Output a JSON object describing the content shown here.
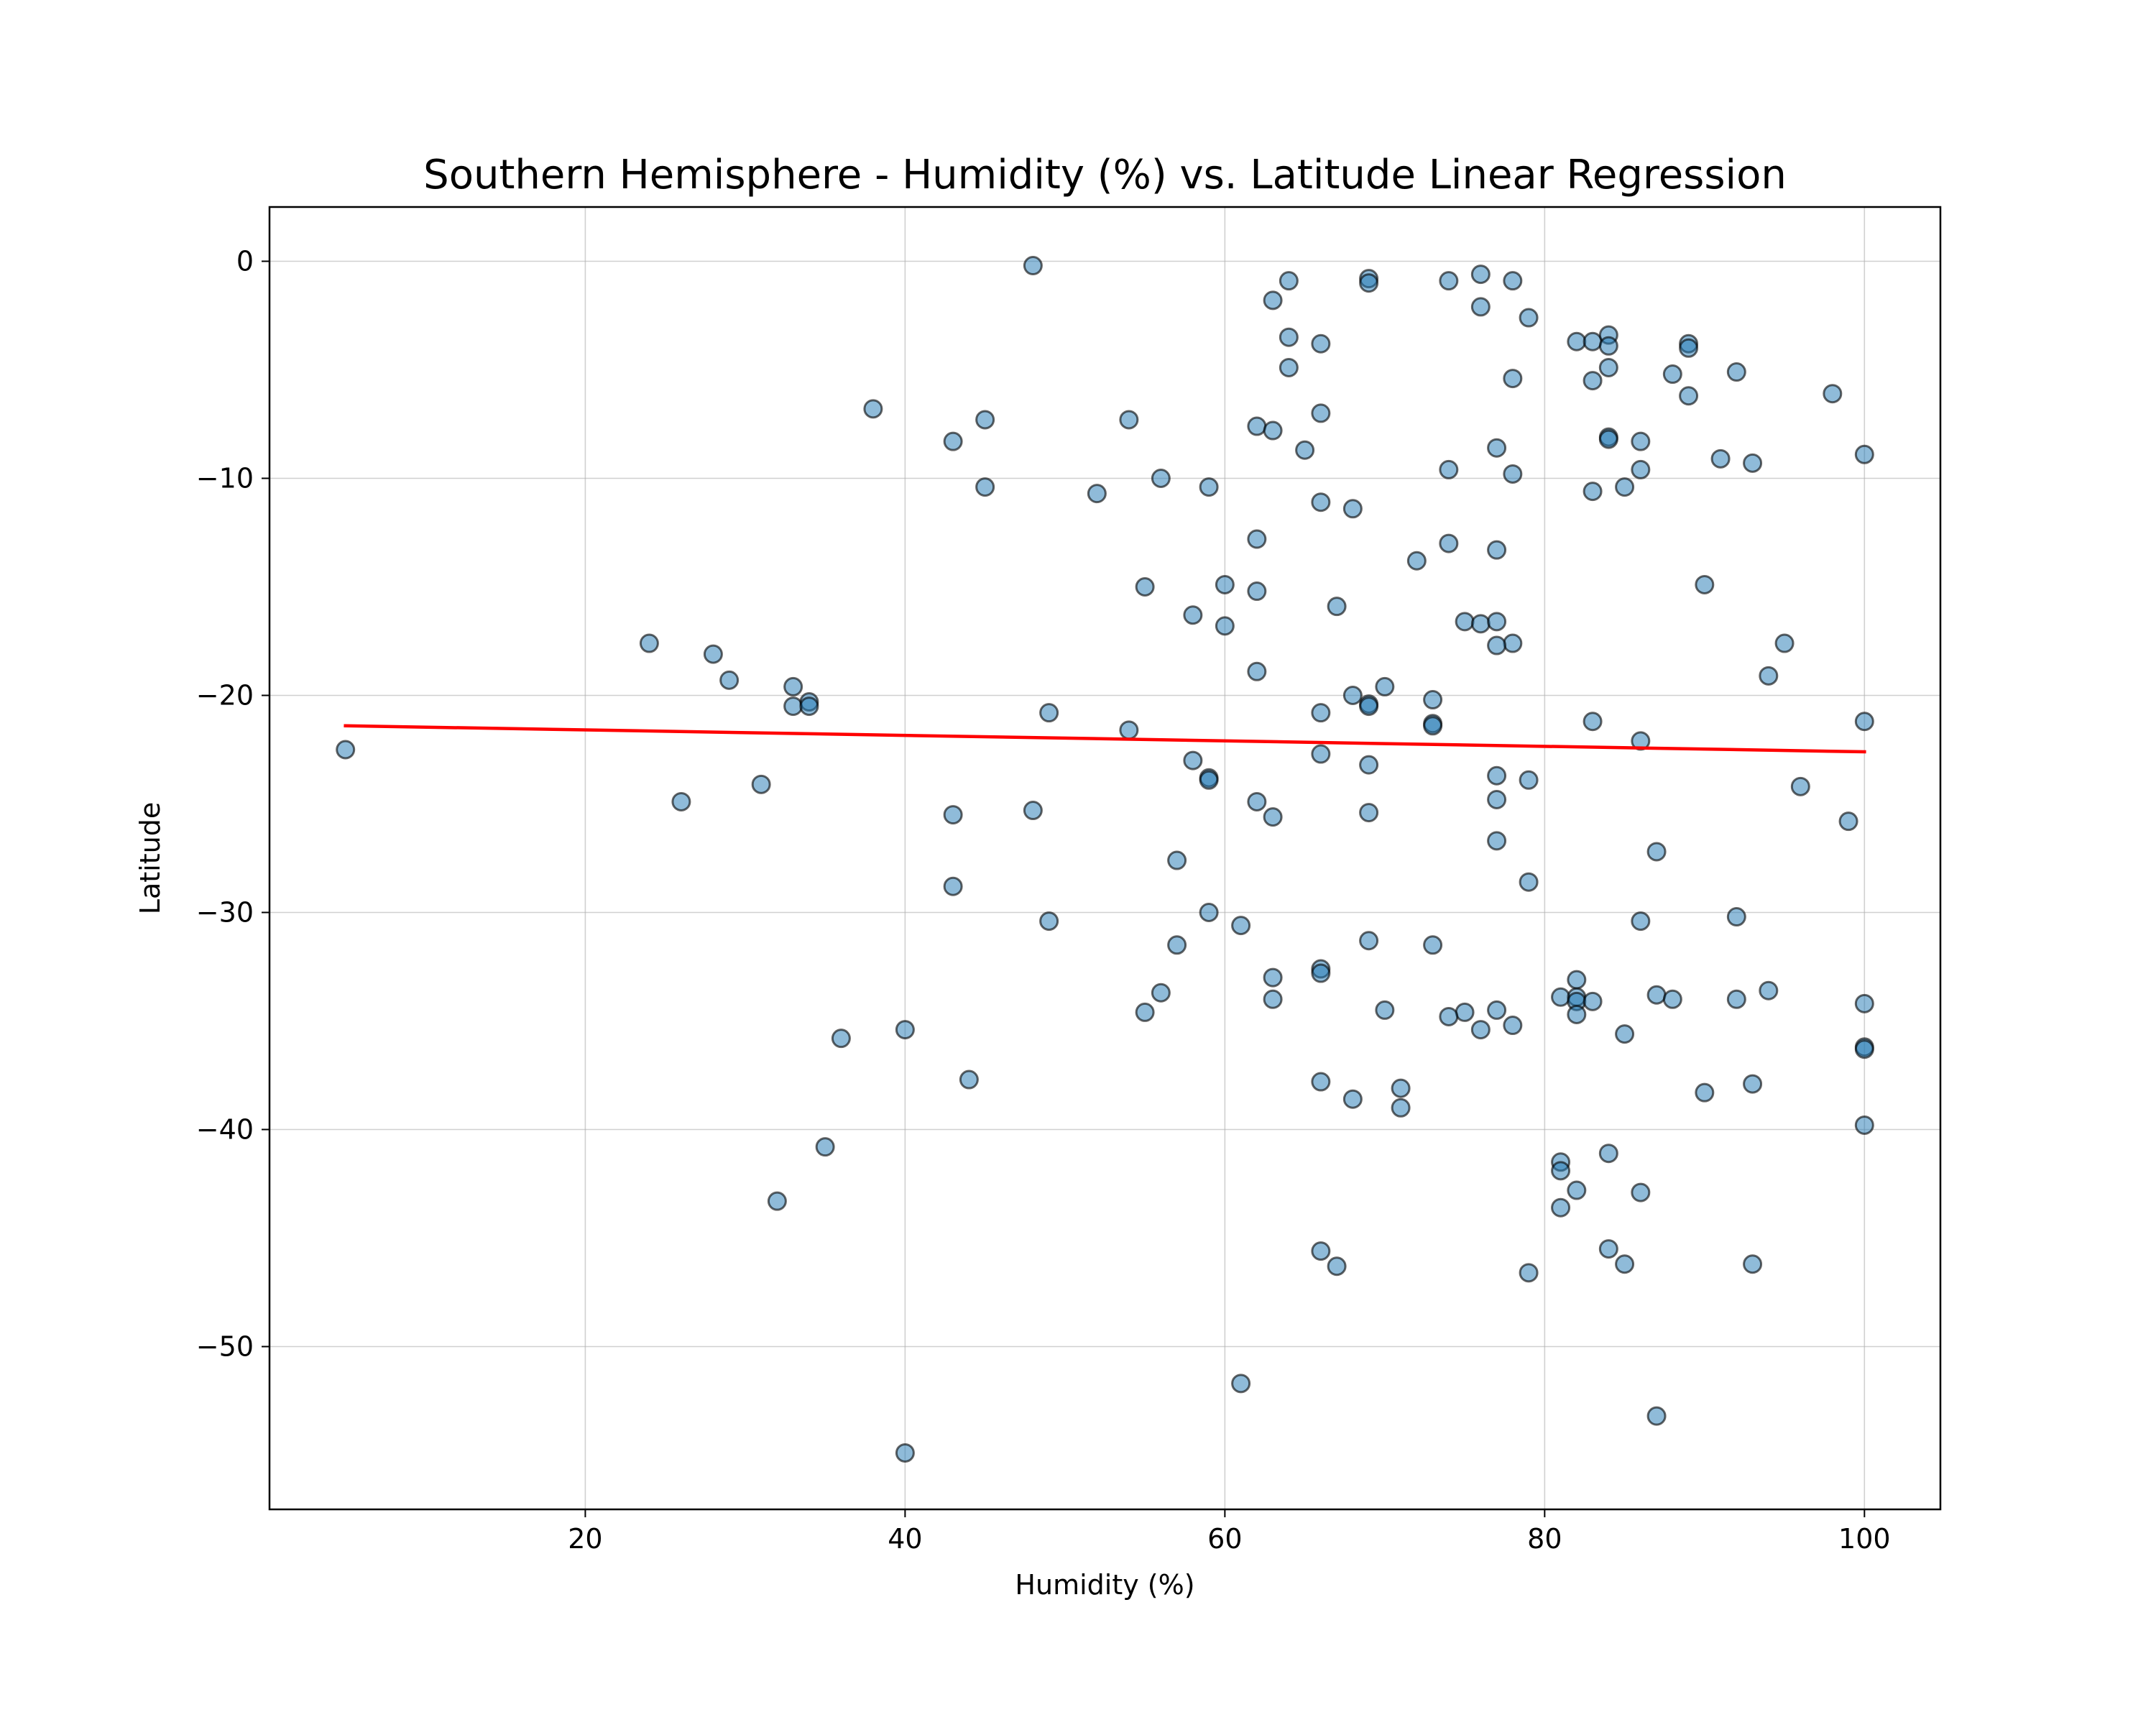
{
  "chart_data": {
    "type": "scatter",
    "title": "Southern Hemisphere - Humidity (%) vs. Latitude Linear Regression",
    "xlabel": "Humidity (%)",
    "ylabel": "Latitude",
    "xlim": [
      0.25,
      104.75
    ],
    "ylim": [
      -57.5,
      2.5
    ],
    "xticks": [
      20,
      40,
      60,
      80,
      100
    ],
    "yticks": [
      0,
      -10,
      -20,
      -30,
      -40,
      -50
    ],
    "xtick_labels": [
      "20",
      "40",
      "60",
      "80",
      "100"
    ],
    "ytick_labels": [
      "0",
      "−10",
      "−20",
      "−30",
      "−40",
      "−50"
    ],
    "grid": true,
    "legend": "none",
    "point_color": "#1f77b4",
    "point_edge_color": "#000000",
    "point_alpha": 0.5,
    "line_color": "#ff0000",
    "regression_line": {
      "x": [
        5,
        100
      ],
      "y": [
        -21.4,
        -22.6
      ]
    },
    "series": [
      {
        "points": [
          [
            48,
            -0.2
          ],
          [
            69,
            -0.8
          ],
          [
            69,
            -1.0
          ],
          [
            76,
            -0.6
          ],
          [
            74,
            -0.9
          ],
          [
            78,
            -0.9
          ],
          [
            64,
            -0.9
          ],
          [
            63,
            -1.8
          ],
          [
            76,
            -2.1
          ],
          [
            79,
            -2.6
          ],
          [
            64,
            -3.5
          ],
          [
            66,
            -3.8
          ],
          [
            82,
            -3.7
          ],
          [
            83,
            -3.7
          ],
          [
            84,
            -3.4
          ],
          [
            84,
            -3.9
          ],
          [
            89,
            -3.8
          ],
          [
            89,
            -4.0
          ],
          [
            64,
            -4.9
          ],
          [
            84,
            -4.9
          ],
          [
            78,
            -5.4
          ],
          [
            83,
            -5.5
          ],
          [
            88,
            -5.2
          ],
          [
            92,
            -5.1
          ],
          [
            89,
            -6.2
          ],
          [
            98,
            -6.1
          ],
          [
            38,
            -6.8
          ],
          [
            45,
            -7.3
          ],
          [
            54,
            -7.3
          ],
          [
            66,
            -7.0
          ],
          [
            62,
            -7.6
          ],
          [
            63,
            -7.8
          ],
          [
            43,
            -8.3
          ],
          [
            65,
            -8.7
          ],
          [
            77,
            -8.6
          ],
          [
            84,
            -8.1
          ],
          [
            84,
            -8.2
          ],
          [
            86,
            -8.3
          ],
          [
            100,
            -8.9
          ],
          [
            91,
            -9.1
          ],
          [
            93,
            -9.3
          ],
          [
            74,
            -9.6
          ],
          [
            78,
            -9.8
          ],
          [
            86,
            -9.6
          ],
          [
            56,
            -10.0
          ],
          [
            59,
            -10.4
          ],
          [
            45,
            -10.4
          ],
          [
            52,
            -10.7
          ],
          [
            83,
            -10.6
          ],
          [
            85,
            -10.4
          ],
          [
            66,
            -11.1
          ],
          [
            68,
            -11.4
          ],
          [
            62,
            -12.8
          ],
          [
            74,
            -13.0
          ],
          [
            77,
            -13.3
          ],
          [
            72,
            -13.8
          ],
          [
            55,
            -15.0
          ],
          [
            60,
            -14.9
          ],
          [
            62,
            -15.2
          ],
          [
            90,
            -14.9
          ],
          [
            58,
            -16.3
          ],
          [
            67,
            -15.9
          ],
          [
            60,
            -16.8
          ],
          [
            75,
            -16.6
          ],
          [
            76,
            -16.7
          ],
          [
            77,
            -16.6
          ],
          [
            24,
            -17.6
          ],
          [
            78,
            -17.6
          ],
          [
            77,
            -17.7
          ],
          [
            95,
            -17.6
          ],
          [
            28,
            -18.1
          ],
          [
            62,
            -18.9
          ],
          [
            29,
            -19.3
          ],
          [
            94,
            -19.1
          ],
          [
            33,
            -19.6
          ],
          [
            70,
            -19.6
          ],
          [
            33,
            -20.5
          ],
          [
            34,
            -20.3
          ],
          [
            34,
            -20.5
          ],
          [
            68,
            -20.0
          ],
          [
            69,
            -20.4
          ],
          [
            69,
            -20.5
          ],
          [
            73,
            -20.2
          ],
          [
            49,
            -20.8
          ],
          [
            66,
            -20.8
          ],
          [
            73,
            -21.3
          ],
          [
            73,
            -21.4
          ],
          [
            83,
            -21.2
          ],
          [
            100,
            -21.2
          ],
          [
            54,
            -21.6
          ],
          [
            86,
            -22.1
          ],
          [
            5,
            -22.5
          ],
          [
            66,
            -22.7
          ],
          [
            58,
            -23.0
          ],
          [
            69,
            -23.2
          ],
          [
            59,
            -23.8
          ],
          [
            59,
            -23.9
          ],
          [
            77,
            -23.7
          ],
          [
            79,
            -23.9
          ],
          [
            31,
            -24.1
          ],
          [
            96,
            -24.2
          ],
          [
            26,
            -24.9
          ],
          [
            62,
            -24.9
          ],
          [
            77,
            -24.8
          ],
          [
            43,
            -25.5
          ],
          [
            48,
            -25.3
          ],
          [
            63,
            -25.6
          ],
          [
            69,
            -25.4
          ],
          [
            99,
            -25.8
          ],
          [
            77,
            -26.7
          ],
          [
            87,
            -27.2
          ],
          [
            57,
            -27.6
          ],
          [
            43,
            -28.8
          ],
          [
            79,
            -28.6
          ],
          [
            59,
            -30.0
          ],
          [
            92,
            -30.2
          ],
          [
            49,
            -30.4
          ],
          [
            61,
            -30.6
          ],
          [
            86,
            -30.4
          ],
          [
            57,
            -31.5
          ],
          [
            69,
            -31.3
          ],
          [
            73,
            -31.5
          ],
          [
            66,
            -32.6
          ],
          [
            66,
            -32.8
          ],
          [
            63,
            -33.0
          ],
          [
            82,
            -33.1
          ],
          [
            56,
            -33.7
          ],
          [
            63,
            -34.0
          ],
          [
            81,
            -33.9
          ],
          [
            82,
            -33.9
          ],
          [
            82,
            -34.1
          ],
          [
            83,
            -34.1
          ],
          [
            87,
            -33.8
          ],
          [
            88,
            -34.0
          ],
          [
            92,
            -34.0
          ],
          [
            94,
            -33.6
          ],
          [
            55,
            -34.6
          ],
          [
            70,
            -34.5
          ],
          [
            75,
            -34.6
          ],
          [
            77,
            -34.5
          ],
          [
            82,
            -34.7
          ],
          [
            100,
            -34.2
          ],
          [
            74,
            -34.8
          ],
          [
            76,
            -35.4
          ],
          [
            78,
            -35.2
          ],
          [
            85,
            -35.6
          ],
          [
            40,
            -35.4
          ],
          [
            36,
            -35.8
          ],
          [
            100,
            -36.2
          ],
          [
            100,
            -36.3
          ],
          [
            44,
            -37.7
          ],
          [
            66,
            -37.8
          ],
          [
            71,
            -38.1
          ],
          [
            68,
            -38.6
          ],
          [
            93,
            -37.9
          ],
          [
            90,
            -38.3
          ],
          [
            71,
            -39.0
          ],
          [
            100,
            -39.8
          ],
          [
            35,
            -40.8
          ],
          [
            84,
            -41.1
          ],
          [
            81,
            -41.5
          ],
          [
            81,
            -41.9
          ],
          [
            32,
            -43.3
          ],
          [
            82,
            -42.8
          ],
          [
            86,
            -42.9
          ],
          [
            81,
            -43.6
          ],
          [
            66,
            -45.6
          ],
          [
            67,
            -46.3
          ],
          [
            84,
            -45.5
          ],
          [
            85,
            -46.2
          ],
          [
            93,
            -46.2
          ],
          [
            79,
            -46.6
          ],
          [
            61,
            -51.7
          ],
          [
            87,
            -53.2
          ],
          [
            40,
            -54.9
          ]
        ]
      }
    ]
  }
}
